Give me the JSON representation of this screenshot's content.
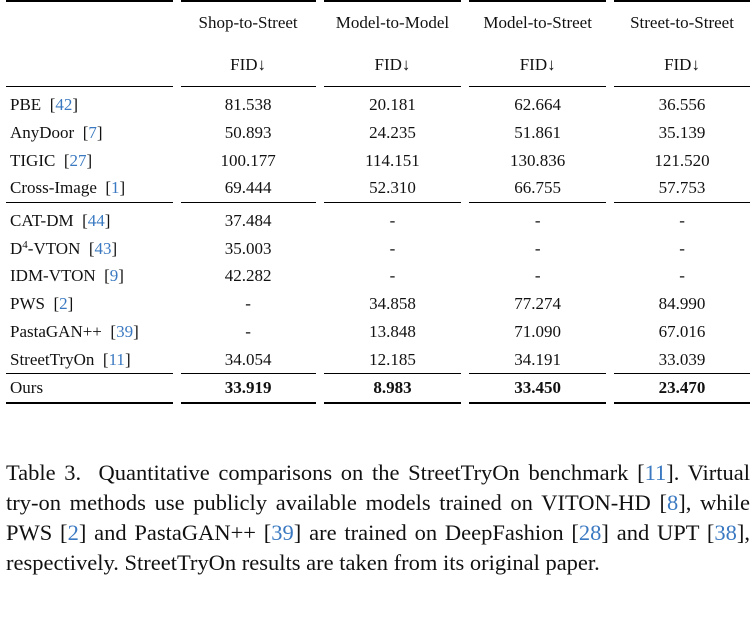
{
  "table": {
    "columns": [
      "Shop-to-Street",
      "Model-to-Model",
      "Model-to-Street",
      "Street-to-Street"
    ],
    "metric": "FID↓",
    "groups": [
      [
        {
          "name": "PBE",
          "cite": "42",
          "values": [
            "81.538",
            "20.181",
            "62.664",
            "36.556"
          ]
        },
        {
          "name": "AnyDoor",
          "cite": "7",
          "values": [
            "50.893",
            "24.235",
            "51.861",
            "35.139"
          ]
        },
        {
          "name": "TIGIC",
          "cite": "27",
          "values": [
            "100.177",
            "114.151",
            "130.836",
            "121.520"
          ]
        },
        {
          "name": "Cross-Image",
          "cite": "1",
          "values": [
            "69.444",
            "52.310",
            "66.755",
            "57.753"
          ]
        }
      ],
      [
        {
          "name": "CAT-DM",
          "cite": "44",
          "values": [
            "37.484",
            "-",
            "-",
            "-"
          ]
        },
        {
          "name": "D",
          "sup": "4",
          "name_suffix": "-VTON",
          "cite": "43",
          "values": [
            "35.003",
            "-",
            "-",
            "-"
          ]
        },
        {
          "name": "IDM-VTON",
          "cite": "9",
          "values": [
            "42.282",
            "-",
            "-",
            "-"
          ]
        },
        {
          "name": "PWS",
          "cite": "2",
          "values": [
            "-",
            "34.858",
            "77.274",
            "84.990"
          ]
        },
        {
          "name": "PastaGAN++",
          "cite": "39",
          "values": [
            "-",
            "13.848",
            "71.090",
            "67.016"
          ]
        },
        {
          "name": "StreetTryOn",
          "cite": "11",
          "values": [
            "34.054",
            "12.185",
            "34.191",
            "33.039"
          ]
        }
      ]
    ],
    "ours": {
      "name": "Ours",
      "values": [
        "33.919",
        "8.983",
        "33.450",
        "23.470"
      ]
    }
  },
  "caption": {
    "label": "Table 3.",
    "p1": "Quantitative comparisons on the StreetTryOn benchmark [",
    "c1": "11",
    "p2": "]. Virtual try-on methods use publicly available models trained on VITON-HD [",
    "c2": "8",
    "p3": "], while PWS [",
    "c3": "2",
    "p4": "] and PastaGAN++ [",
    "c4": "39",
    "p5": "] are trained on DeepFashion [",
    "c5": "28",
    "p6": "] and UPT [",
    "c6": "38",
    "p7": "], respectively. StreetTryOn results are taken from its original paper."
  }
}
